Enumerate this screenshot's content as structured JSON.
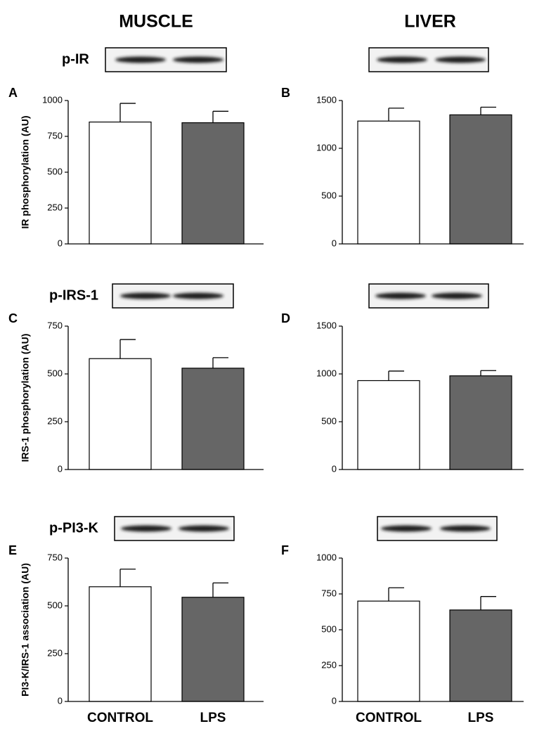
{
  "column_titles": [
    "MUSCLE",
    "LIVER"
  ],
  "chart_data": [
    {
      "type": "bar",
      "label": "A",
      "blot_label": "p-IR",
      "ylabel": "IR phosphorylation (AU)",
      "categories": [
        null,
        null
      ],
      "values": [
        850,
        845
      ],
      "errors": [
        130,
        80
      ],
      "colors": [
        "#ffffff",
        "#666666"
      ],
      "ylim": [
        0,
        1000
      ],
      "yticks": [
        0,
        250,
        500,
        750,
        1000
      ]
    },
    {
      "type": "bar",
      "label": "B",
      "categories": [
        null,
        null
      ],
      "values": [
        1285,
        1350
      ],
      "errors": [
        135,
        80
      ],
      "colors": [
        "#ffffff",
        "#666666"
      ],
      "ylim": [
        0,
        1500
      ],
      "yticks": [
        0,
        500,
        1000,
        1500
      ]
    },
    {
      "type": "bar",
      "label": "C",
      "blot_label": "p-IRS-1",
      "ylabel": "IRS-1 phosphorylation (AU)",
      "categories": [
        null,
        null
      ],
      "values": [
        580,
        530
      ],
      "errors": [
        100,
        55
      ],
      "colors": [
        "#ffffff",
        "#666666"
      ],
      "ylim": [
        0,
        750
      ],
      "yticks": [
        0,
        250,
        500,
        750
      ]
    },
    {
      "type": "bar",
      "label": "D",
      "categories": [
        null,
        null
      ],
      "values": [
        930,
        980
      ],
      "errors": [
        100,
        55
      ],
      "colors": [
        "#ffffff",
        "#666666"
      ],
      "ylim": [
        0,
        1500
      ],
      "yticks": [
        0,
        500,
        1000,
        1500
      ]
    },
    {
      "type": "bar",
      "label": "E",
      "blot_label": "p-PI3-K",
      "ylabel": "PI3-K/IRS-1 association (AU)",
      "categories": [
        "CONTROL",
        "LPS"
      ],
      "values": [
        600,
        545
      ],
      "errors": [
        92,
        75
      ],
      "colors": [
        "#ffffff",
        "#666666"
      ],
      "ylim": [
        0,
        750
      ],
      "yticks": [
        0,
        250,
        500,
        750
      ]
    },
    {
      "type": "bar",
      "label": "F",
      "categories": [
        "CONTROL",
        "LPS"
      ],
      "values": [
        700,
        638
      ],
      "errors": [
        93,
        94
      ],
      "colors": [
        "#ffffff",
        "#666666"
      ],
      "ylim": [
        0,
        1000
      ],
      "yticks": [
        0,
        250,
        500,
        750,
        1000
      ]
    }
  ]
}
